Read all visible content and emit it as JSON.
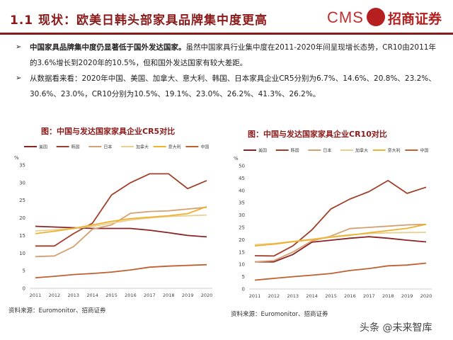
{
  "header": {
    "title": "1.1 现状：欧美日韩头部家具品牌集中度更高",
    "logo_cms": "CMS",
    "logo_text": "招商证券"
  },
  "bullets": [
    {
      "bold": "中国家具品牌集中度仍显著低于国外发达国家。",
      "text": "虽然中国家具行业集中度在2011-2020年间呈现增长态势，CR10由2011年的3.6%增长到2020年的10.5%，但和国外发达国家有较大差距。"
    },
    {
      "bold": "",
      "text": "从数据看来看：2020年中国、美国、加拿大、意大利、韩国、日本家具企业CR5分别为6.7%、14.6%、20.8%、23.2%、30.6%、23.0%，CR10分别为10.5%、19.1%、23.0%、26.2%、41.3%、26.2%。"
    }
  ],
  "charts": [
    {
      "title": "图：中国与发达国家家具企业CR5对比",
      "source": "资料来源：Euromonitor、招商证券",
      "unit": "%"
    },
    {
      "title": "图：中国与发达国家家具企业CR10对比",
      "source": "资料来源：Euromonitor、招商证券",
      "unit": "%"
    }
  ],
  "watermark": "头条 @未来智库",
  "chart_data": [
    {
      "type": "line",
      "title": "图：中国与发达国家家具企业CR5对比",
      "ylabel": "%",
      "ylim": [
        0,
        35
      ],
      "yticks": [
        0,
        5,
        10,
        15,
        20,
        25,
        30,
        35
      ],
      "x": [
        "2011",
        "2012",
        "2013",
        "2014",
        "2015",
        "2016",
        "2017",
        "2018",
        "2019",
        "2020"
      ],
      "legend_position": "top",
      "series": [
        {
          "name": "美国",
          "color": "#8B2323",
          "values": [
            17.6,
            17.4,
            17.2,
            17.0,
            17.0,
            17.0,
            16.5,
            15.8,
            15.0,
            14.6
          ]
        },
        {
          "name": "韩国",
          "color": "#A0402A",
          "values": [
            12.0,
            12.0,
            15.5,
            18.5,
            26.5,
            30.0,
            32.5,
            32.5,
            28.3,
            30.6
          ]
        },
        {
          "name": "日本",
          "color": "#D4A070",
          "values": [
            9.0,
            9.2,
            11.8,
            16.8,
            18.0,
            21.3,
            21.8,
            22.0,
            22.5,
            23.0
          ]
        },
        {
          "name": "加拿大",
          "color": "#E8D090",
          "values": [
            16.3,
            16.6,
            17.0,
            17.6,
            18.5,
            19.4,
            20.0,
            20.4,
            20.6,
            20.8
          ]
        },
        {
          "name": "意大利",
          "color": "#F0B030",
          "values": [
            15.5,
            16.2,
            17.0,
            18.0,
            19.0,
            19.8,
            20.2,
            20.6,
            21.2,
            23.2
          ]
        },
        {
          "name": "中国",
          "color": "#C06030",
          "values": [
            3.0,
            3.4,
            3.9,
            4.2,
            4.6,
            5.2,
            6.0,
            6.3,
            6.5,
            6.7
          ]
        }
      ]
    },
    {
      "type": "line",
      "title": "图：中国与发达国家家具企业CR10对比",
      "ylabel": "%",
      "ylim": [
        0,
        50
      ],
      "yticks": [
        0,
        5,
        10,
        15,
        20,
        25,
        30,
        35,
        40,
        45,
        50
      ],
      "x": [
        "2011",
        "2012",
        "2013",
        "2014",
        "2015",
        "2016",
        "2017",
        "2018",
        "2019",
        "2020"
      ],
      "legend_position": "top",
      "series": [
        {
          "name": "美国",
          "color": "#8B2323",
          "values": [
            11.0,
            11.0,
            14.0,
            19.0,
            19.8,
            20.6,
            21.2,
            20.6,
            19.8,
            19.1
          ]
        },
        {
          "name": "韩国",
          "color": "#A0402A",
          "values": [
            13.5,
            13.4,
            17.5,
            24.0,
            32.5,
            36.5,
            39.5,
            44.0,
            38.8,
            41.3
          ]
        },
        {
          "name": "日本",
          "color": "#D4A070",
          "values": [
            11.0,
            11.5,
            15.0,
            19.5,
            21.5,
            24.5,
            25.0,
            25.5,
            26.0,
            26.2
          ]
        },
        {
          "name": "加拿大",
          "color": "#E8D090",
          "values": [
            18.0,
            18.5,
            19.3,
            20.2,
            21.2,
            22.0,
            22.5,
            22.8,
            22.9,
            23.0
          ]
        },
        {
          "name": "意大利",
          "color": "#F0B030",
          "values": [
            17.5,
            18.2,
            19.2,
            20.0,
            21.0,
            21.8,
            22.8,
            23.7,
            24.6,
            26.2
          ]
        },
        {
          "name": "中国",
          "color": "#C06030",
          "values": [
            3.6,
            4.3,
            5.0,
            5.6,
            6.3,
            7.5,
            8.3,
            9.4,
            9.7,
            10.5
          ]
        }
      ]
    }
  ]
}
